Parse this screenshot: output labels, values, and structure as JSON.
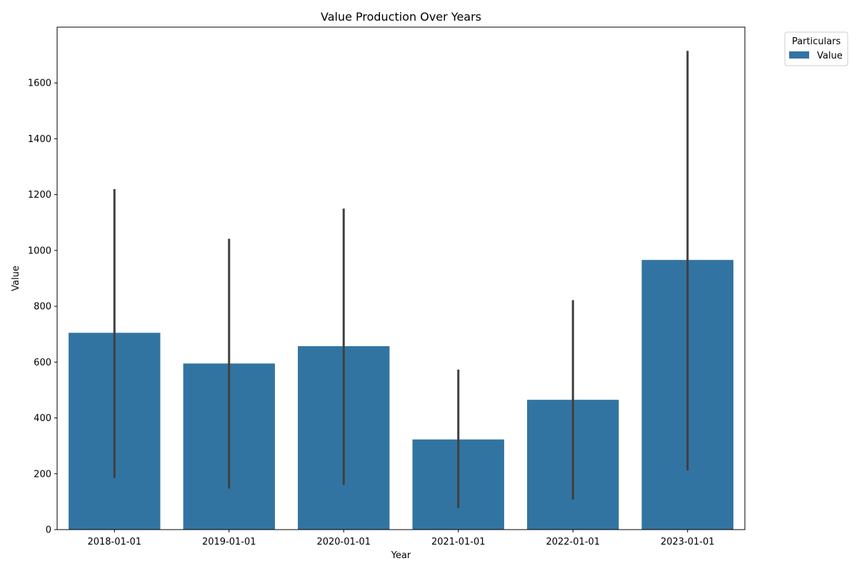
{
  "chart_data": {
    "type": "bar",
    "title": "Value Production Over Years",
    "xlabel": "Year",
    "ylabel": "Value",
    "categories": [
      "2018-01-01",
      "2019-01-01",
      "2020-01-01",
      "2021-01-01",
      "2022-01-01",
      "2023-01-01"
    ],
    "series": [
      {
        "name": "Value",
        "color": "#3274a1",
        "values": [
          705,
          595,
          657,
          323,
          465,
          966
        ],
        "error_low": [
          185,
          147,
          160,
          77,
          108,
          212
        ],
        "error_high": [
          1220,
          1042,
          1150,
          573,
          822,
          1715
        ]
      }
    ],
    "ylim": [
      0,
      1800
    ],
    "yticks": [
      0,
      200,
      400,
      600,
      800,
      1000,
      1200,
      1400,
      1600
    ],
    "grid": false,
    "legend": {
      "title": "Particulars",
      "placement": "upper-right-outside"
    },
    "errorbar_color": "#3f3f3f"
  }
}
